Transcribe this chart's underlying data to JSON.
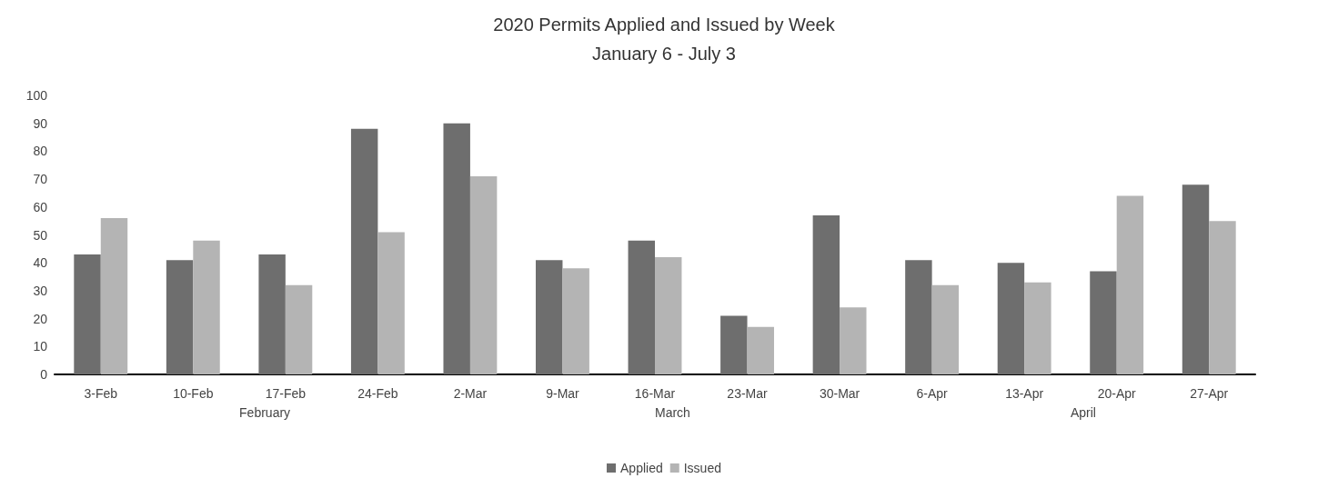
{
  "chart_data": {
    "type": "bar",
    "title": "2020 Permits Applied and Issued by Week",
    "subtitle": "January 6 - July 3",
    "categories": [
      "3-Feb",
      "10-Feb",
      "17-Feb",
      "24-Feb",
      "2-Mar",
      "9-Mar",
      "16-Mar",
      "23-Mar",
      "30-Mar",
      "6-Apr",
      "13-Apr",
      "20-Apr",
      "27-Apr"
    ],
    "series": [
      {
        "name": "Applied",
        "color": "#6e6e6e",
        "values": [
          43,
          41,
          43,
          88,
          90,
          41,
          48,
          21,
          57,
          41,
          40,
          37,
          68
        ]
      },
      {
        "name": "Issued",
        "color": "#b4b4b4",
        "values": [
          56,
          48,
          32,
          51,
          71,
          38,
          42,
          17,
          24,
          32,
          33,
          64,
          55
        ]
      }
    ],
    "annotations": [
      "February",
      "March",
      "April"
    ],
    "ylim": [
      0,
      100
    ],
    "yticks": [
      0,
      10,
      20,
      30,
      40,
      50,
      60,
      70,
      80,
      90,
      100
    ],
    "grid": false,
    "legend": "bottom"
  }
}
